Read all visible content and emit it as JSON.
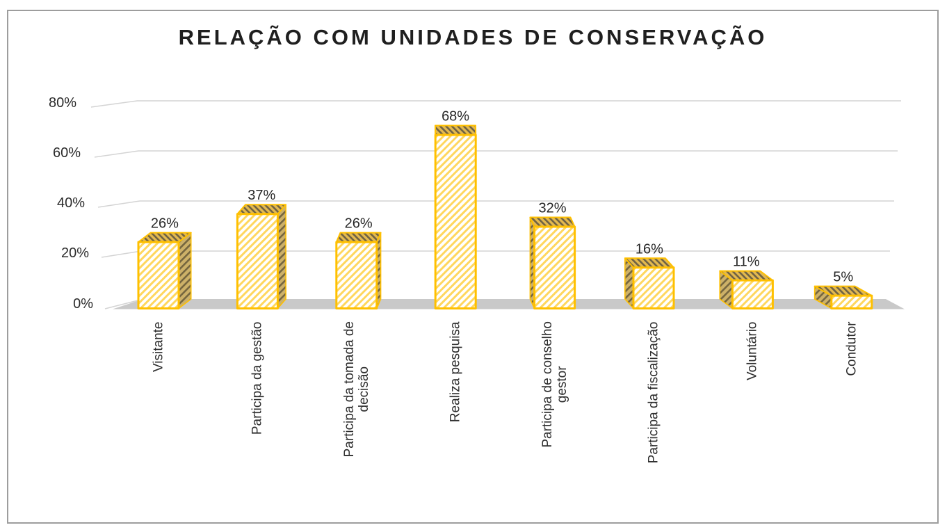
{
  "chart_data": {
    "type": "bar",
    "title": "RELAÇÃO COM UNIDADES DE CONSERVAÇÃO",
    "categories": [
      "Visitante",
      "Participa da gestão",
      "Participa da tomada de decisão",
      "Realiza pesquisa",
      "Participa de conselho gestor",
      "Participa da fiscalização",
      "Voluntário",
      "Condutor"
    ],
    "categories_lines": [
      [
        "Visitante"
      ],
      [
        "Participa da gestão"
      ],
      [
        "Participa da tomada de",
        "decisão"
      ],
      [
        "Realiza pesquisa"
      ],
      [
        "Participa de conselho",
        "gestor"
      ],
      [
        "Participa da fiscalização"
      ],
      [
        "Voluntário"
      ],
      [
        "Condutor"
      ]
    ],
    "values": [
      26,
      37,
      26,
      68,
      32,
      16,
      11,
      5
    ],
    "value_labels": [
      "26%",
      "37%",
      "26%",
      "68%",
      "32%",
      "16%",
      "11%",
      "5%"
    ],
    "yticks": [
      "0%",
      "20%",
      "40%",
      "60%",
      "80%"
    ],
    "ylim": [
      0,
      80
    ],
    "xlabel": "",
    "ylabel": "",
    "grid": true,
    "legend": "none",
    "style": "3d-column-hatched",
    "colors": {
      "bar_frame": "#FFC000",
      "front_hatch": "#FFD75E",
      "front_face": "#FFFFFF",
      "top_face": "#E3B94F",
      "top_hatch": "#6E6244",
      "side_face": "#CDB168",
      "side_hatch": "#75663F",
      "floor": "#C9C9C9",
      "gridline": "#D4D4D4",
      "text": "#262626",
      "border": "#9D9D9D"
    }
  }
}
